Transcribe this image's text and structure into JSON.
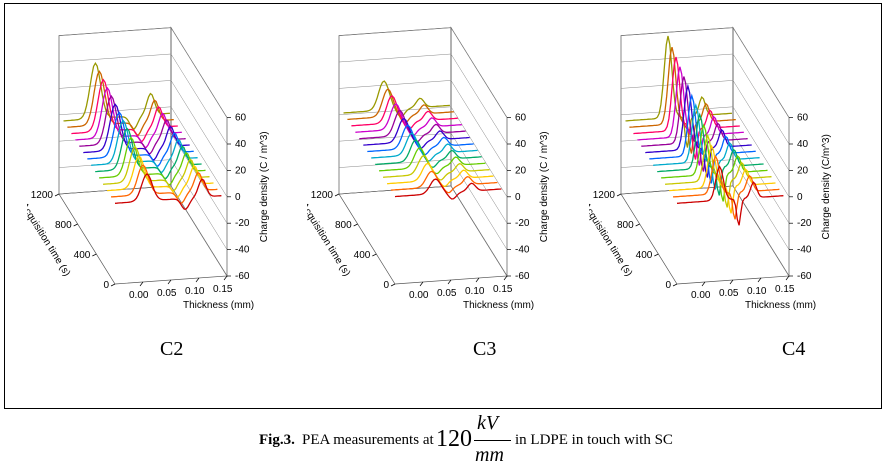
{
  "chart_data": [
    {
      "type": "3d-waterfall",
      "label": "C2",
      "zlim": [
        -60,
        60
      ],
      "z_ticks": [
        "60",
        "40",
        "20",
        "0",
        "-20",
        "-40",
        "-60"
      ],
      "x_ticks": [
        "0.00",
        "0.05",
        "0.10",
        "0.15"
      ],
      "y_ticks": [
        "1200",
        "800",
        "400",
        "0"
      ],
      "xlabel": "Thickness (mm)",
      "ylabel": "Acquisition time (s)",
      "zlabel": "Charge density (C / m^3)",
      "peak_charge_density": [
        24,
        26,
        28,
        30,
        32,
        34,
        35,
        36,
        37,
        38,
        39,
        40,
        41,
        42
      ]
    },
    {
      "type": "3d-waterfall",
      "label": "C3",
      "zlim": [
        -60,
        60
      ],
      "z_ticks": [
        "60",
        "40",
        "20",
        "0",
        "-20",
        "-40",
        "-60"
      ],
      "x_ticks": [
        "0.00",
        "0.05",
        "0.10",
        "0.15"
      ],
      "y_ticks": [
        "1200",
        "800",
        "400",
        "0"
      ],
      "xlabel": "Thickness (mm)",
      "ylabel": "Acquisition time (s)",
      "zlabel": "Charge density (C / m^3)",
      "peak_charge_density": [
        13,
        14,
        15,
        16,
        17,
        18,
        18,
        19,
        19,
        20,
        20,
        21,
        21,
        22
      ]
    },
    {
      "type": "3d-waterfall",
      "label": "C4",
      "zlim": [
        -60,
        60
      ],
      "z_ticks": [
        "60",
        "40",
        "20",
        "0",
        "-20",
        "-40",
        "-60"
      ],
      "x_ticks": [
        "0.00",
        "0.05",
        "0.10",
        "0.15"
      ],
      "y_ticks": [
        "1200",
        "800",
        "400",
        "0"
      ],
      "xlabel": "Thickness (mm)",
      "ylabel": "Acquisition time (s)",
      "zlabel": "Charge density (C/m^3)",
      "peak_charge_density": [
        30,
        33,
        36,
        39,
        42,
        45,
        47,
        49,
        51,
        53,
        55,
        57,
        59,
        62
      ]
    }
  ],
  "curve_colors": [
    "#cc0000",
    "#ff6600",
    "#ffcc00",
    "#c8c800",
    "#66cc00",
    "#00aa66",
    "#00aacc",
    "#0066ff",
    "#3300cc",
    "#990099",
    "#cc00cc",
    "#ff0066",
    "#cc6600",
    "#999900"
  ],
  "caption": {
    "fig_label": "Fig.3.",
    "text_before": " PEA measurements at ",
    "value": "120",
    "numerator": "kV",
    "denominator": "mm",
    "text_after": " in LDPE in touch with SC"
  }
}
